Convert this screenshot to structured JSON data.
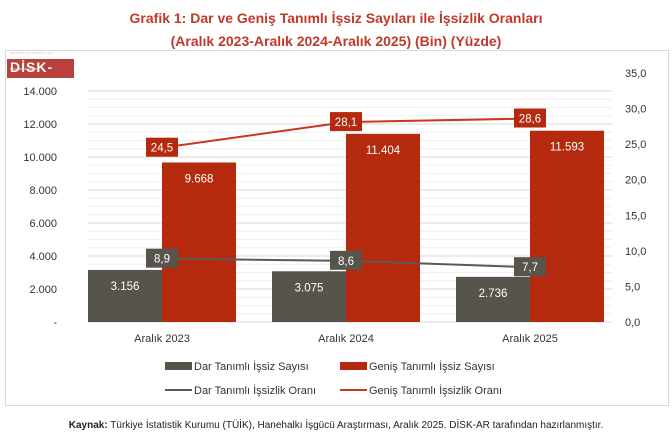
{
  "title_line1": "Grafik 1: Dar ve Geniş Tanımlı İşsiz Sayıları ile İşsizlik Oranları",
  "title_line2": "(Aralık 2023-Aralık 2024-Aralık 2025) (Bin) (Yüzde)",
  "logo_text": "DİSK-AR",
  "source_label": "Kaynak:",
  "source_text": " Türkiye İstatistik Kurumu (TÜİK), Hanehalkı İşgücü Araştırması, Aralık 2025. DİSK-AR tarafından hazırlanmıştır.",
  "colors": {
    "dar_bar": "#57544c",
    "genis_bar": "#b52a0e",
    "dar_line": "#595959",
    "genis_line": "#c8381e"
  },
  "chart_data": {
    "type": "bar+line",
    "categories": [
      "Aralık 2023",
      "Aralık 2024",
      "Aralık 2025"
    ],
    "left_axis": {
      "ylim": [
        0,
        16000
      ],
      "ticks": [
        "-",
        "2.000",
        "4.000",
        "6.000",
        "8.000",
        "10.000",
        "12.000",
        "14.000"
      ],
      "tick_values": [
        0,
        2000,
        4000,
        6000,
        8000,
        10000,
        12000,
        14000
      ]
    },
    "right_axis": {
      "ylim": [
        0,
        35
      ],
      "ticks": [
        "0,0",
        "5,0",
        "10,0",
        "15,0",
        "20,0",
        "25,0",
        "30,0",
        "35,0"
      ],
      "tick_values": [
        0,
        5,
        10,
        15,
        20,
        25,
        30,
        35
      ]
    },
    "grid": true,
    "legend_placement": "bottom",
    "bars": [
      {
        "name": "Dar Tanımlı İşsiz Sayısı",
        "values": [
          3156,
          3075,
          2736
        ],
        "labels": [
          "3.156",
          "3.075",
          "2.736"
        ]
      },
      {
        "name": "Geniş Tanımlı İşsiz Sayısı",
        "values": [
          9668,
          11404,
          11593
        ],
        "labels": [
          "9.668",
          "11.404",
          "11.593"
        ]
      }
    ],
    "lines": [
      {
        "name": "Dar Tanımlı İşsizlik Oranı",
        "values": [
          8.9,
          8.6,
          7.7
        ],
        "labels": [
          "8,9",
          "8,6",
          "7,7"
        ]
      },
      {
        "name": "Geniş Tanımlı İşsizlik Oranı",
        "values": [
          24.5,
          28.1,
          28.6
        ],
        "labels": [
          "24,5",
          "28,1",
          "28,6"
        ]
      }
    ]
  }
}
